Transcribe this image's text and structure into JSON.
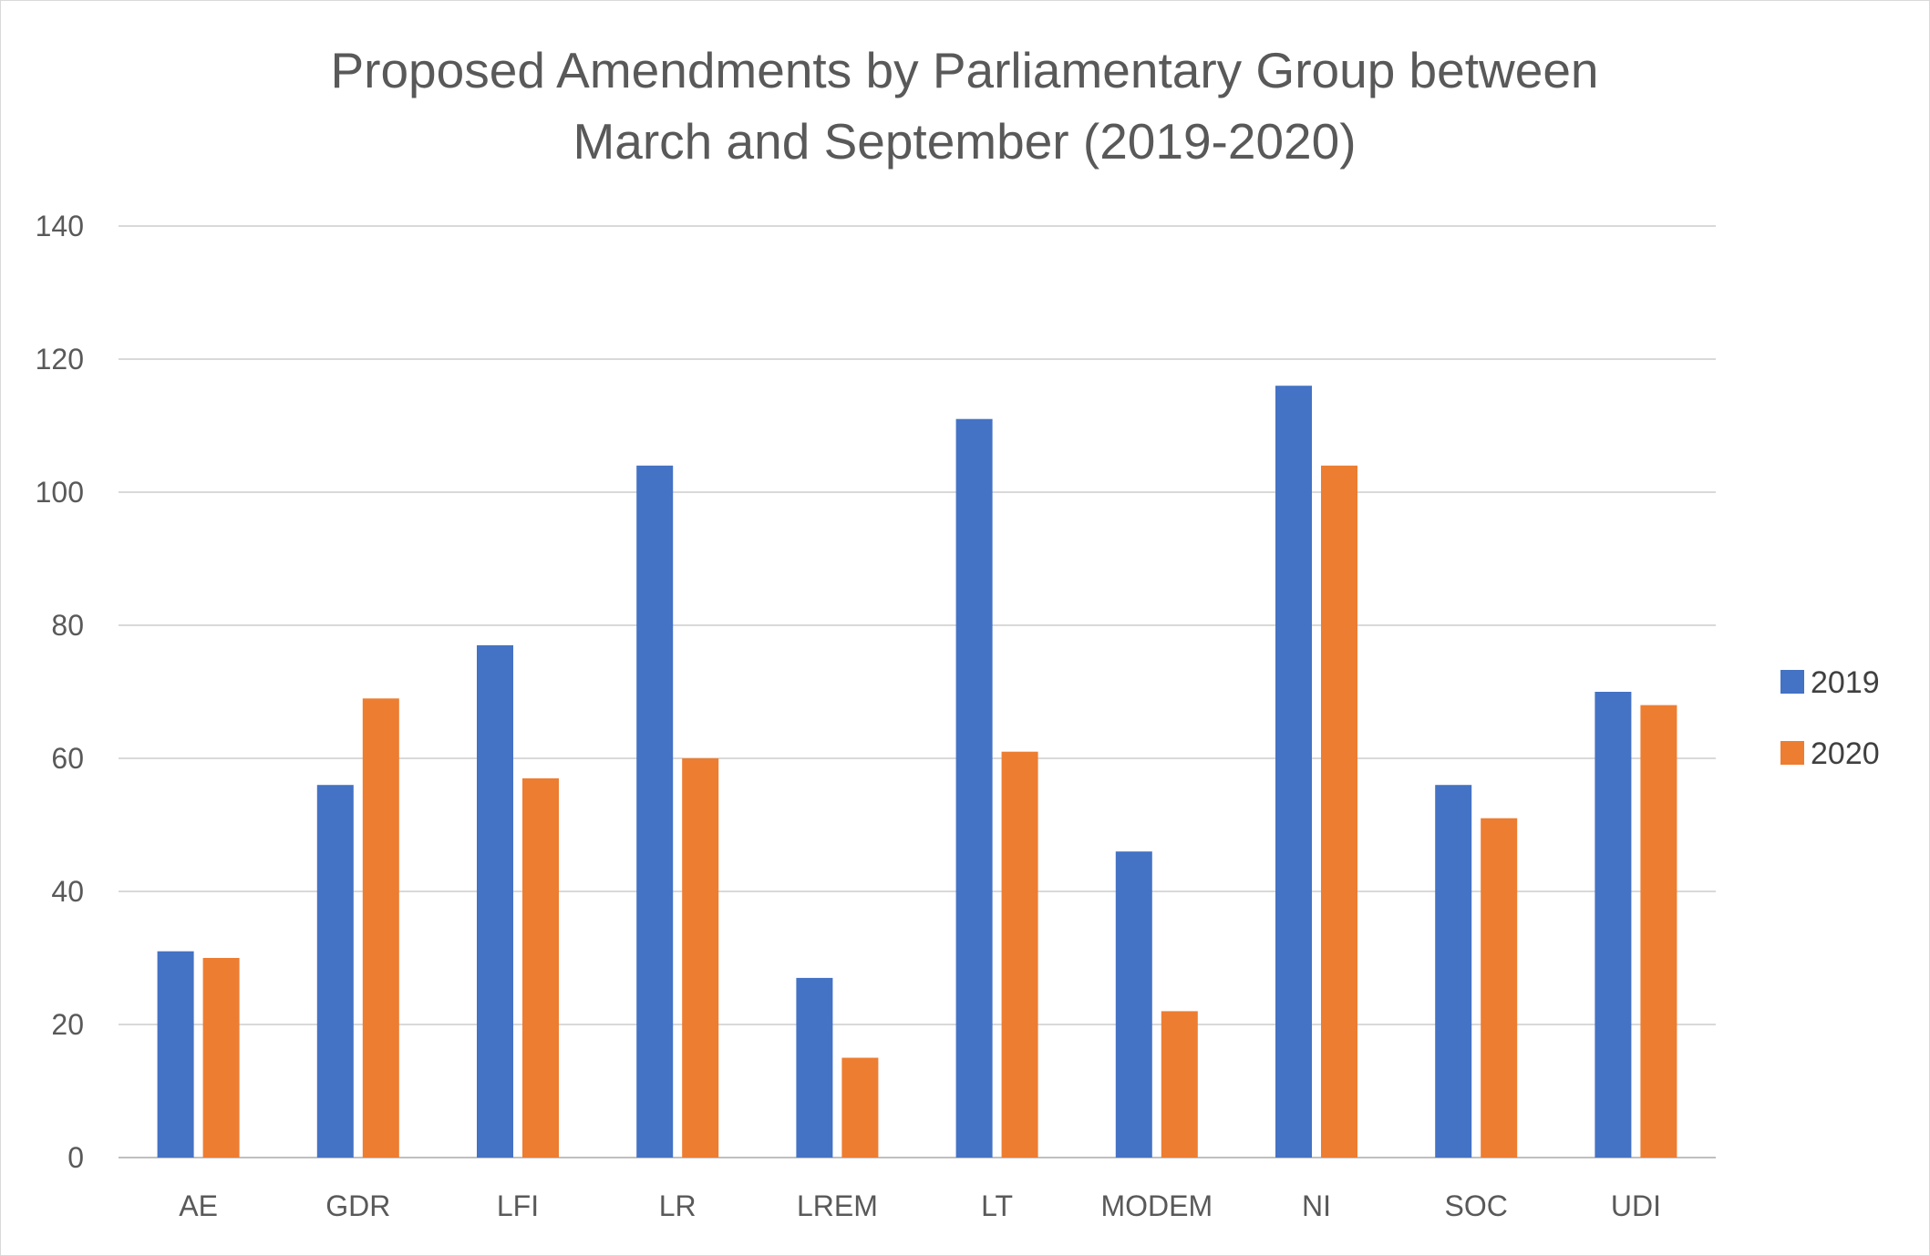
{
  "chart_data": {
    "type": "bar",
    "title_line1": "Proposed Amendments by Parliamentary Group between",
    "title_line2": "March and September (2019-2020)",
    "xlabel": "",
    "ylabel": "",
    "categories": [
      "AE",
      "GDR",
      "LFI",
      "LR",
      "LREM",
      "LT",
      "MODEM",
      "NI",
      "SOC",
      "UDI"
    ],
    "series": [
      {
        "name": "2019",
        "color": "#4472C4",
        "values": [
          31,
          56,
          77,
          104,
          27,
          111,
          46,
          116,
          56,
          70
        ]
      },
      {
        "name": "2020",
        "color": "#ED7D31",
        "values": [
          30,
          69,
          57,
          60,
          15,
          61,
          22,
          104,
          51,
          68
        ]
      }
    ],
    "ylim": [
      0,
      140
    ],
    "yticks": [
      "0",
      "20",
      "40",
      "60",
      "80",
      "100",
      "120",
      "140"
    ],
    "grid": true,
    "legend_position": "right"
  }
}
